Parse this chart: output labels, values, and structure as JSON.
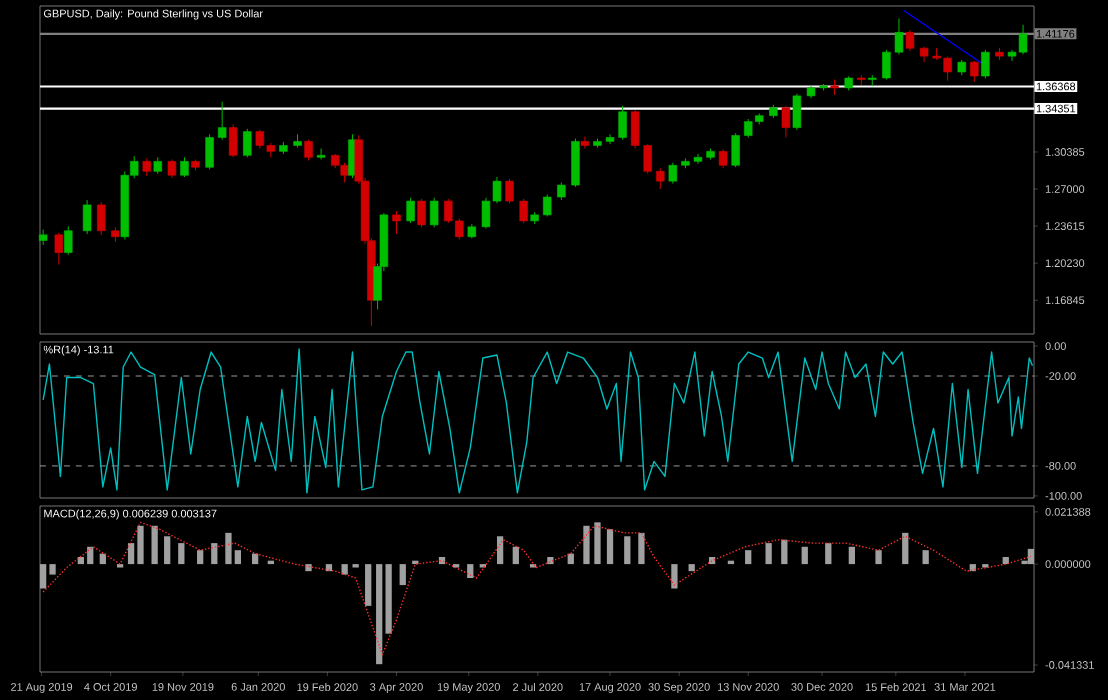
{
  "chart_data": [
    {
      "type": "candlestick",
      "title": "GBPUSD, Daily:  Pound Sterling vs US Dollar",
      "tick_labels": "y",
      "x": [
        "2019-08-22",
        "2019-09-01",
        "2019-09-07",
        "2019-09-19",
        "2019-09-28",
        "2019-10-07",
        "2019-10-13",
        "2019-10-19",
        "2019-10-27",
        "2019-11-03",
        "2019-11-12",
        "2019-11-20",
        "2019-11-27",
        "2019-12-06",
        "2019-12-14",
        "2019-12-21",
        "2019-12-30",
        "2020-01-07",
        "2020-01-14",
        "2020-01-22",
        "2020-01-31",
        "2020-02-07",
        "2020-02-15",
        "2020-02-24",
        "2020-03-01",
        "2020-03-06",
        "2020-03-10",
        "2020-03-14",
        "2020-03-18",
        "2020-03-22",
        "2020-03-26",
        "2020-04-03",
        "2020-04-12",
        "2020-04-19",
        "2020-04-27",
        "2020-05-06",
        "2020-05-13",
        "2020-05-21",
        "2020-05-30",
        "2020-06-06",
        "2020-06-14",
        "2020-06-23",
        "2020-06-30",
        "2020-07-08",
        "2020-07-17",
        "2020-07-26",
        "2020-08-01",
        "2020-08-09",
        "2020-08-17",
        "2020-08-25",
        "2020-09-02",
        "2020-09-10",
        "2020-09-18",
        "2020-09-26",
        "2020-10-04",
        "2020-10-12",
        "2020-10-20",
        "2020-10-28",
        "2020-11-05",
        "2020-11-13",
        "2020-11-20",
        "2020-11-29",
        "2020-12-07",
        "2020-12-14",
        "2020-12-23",
        "2020-12-31",
        "2021-01-07",
        "2021-01-16",
        "2021-01-24",
        "2021-01-31",
        "2021-02-09",
        "2021-02-17",
        "2021-02-24",
        "2021-03-05",
        "2021-03-13",
        "2021-03-20",
        "2021-03-29",
        "2021-04-06",
        "2021-04-13",
        "2021-04-22",
        "2021-04-30",
        "2021-05-07"
      ],
      "ohlc": [
        [
          1.223,
          1.233,
          1.219,
          1.2282
        ],
        [
          1.2282,
          1.23,
          1.201,
          1.212
        ],
        [
          1.212,
          1.236,
          1.21,
          1.2319
        ],
        [
          1.2319,
          1.26,
          1.229,
          1.2555
        ],
        [
          1.2555,
          1.258,
          1.228,
          1.2319
        ],
        [
          1.2319,
          1.235,
          1.222,
          1.2264
        ],
        [
          1.2264,
          1.286,
          1.224,
          1.2826
        ],
        [
          1.2826,
          1.3,
          1.28,
          1.2953
        ],
        [
          1.2953,
          1.298,
          1.282,
          1.2862
        ],
        [
          1.2862,
          1.299,
          1.284,
          1.2953
        ],
        [
          1.2953,
          1.297,
          1.28,
          1.2826
        ],
        [
          1.2826,
          1.299,
          1.281,
          1.2953
        ],
        [
          1.2953,
          1.297,
          1.287,
          1.2899
        ],
        [
          1.2899,
          1.32,
          1.288,
          1.3171
        ],
        [
          1.3171,
          1.3497,
          1.315,
          1.3261
        ],
        [
          1.3261,
          1.329,
          1.299,
          1.3008
        ],
        [
          1.3008,
          1.325,
          1.299,
          1.3225
        ],
        [
          1.3225,
          1.324,
          1.307,
          1.3098
        ],
        [
          1.3098,
          1.312,
          1.299,
          1.3044
        ],
        [
          1.3044,
          1.313,
          1.302,
          1.3098
        ],
        [
          1.3098,
          1.32,
          1.308,
          1.3135
        ],
        [
          1.3135,
          1.315,
          1.296,
          1.299
        ],
        [
          1.299,
          1.307,
          1.297,
          1.3008
        ],
        [
          1.3008,
          1.302,
          1.289,
          1.2917
        ],
        [
          1.2917,
          1.294,
          1.276,
          1.2826
        ],
        [
          1.2826,
          1.32,
          1.28,
          1.315
        ],
        [
          1.315,
          1.319,
          1.275,
          1.2772
        ],
        [
          1.2772,
          1.28,
          1.22,
          1.2228
        ],
        [
          1.2228,
          1.225,
          1.1449,
          1.1684
        ],
        [
          1.1684,
          1.202,
          1.16,
          1.1992
        ],
        [
          1.1992,
          1.248,
          1.195,
          1.2464
        ],
        [
          1.2464,
          1.25,
          1.229,
          1.2409
        ],
        [
          1.2409,
          1.262,
          1.239,
          1.259
        ],
        [
          1.259,
          1.261,
          1.235,
          1.2373
        ],
        [
          1.2373,
          1.262,
          1.235,
          1.259
        ],
        [
          1.259,
          1.261,
          1.239,
          1.2409
        ],
        [
          1.2409,
          1.243,
          1.224,
          1.2264
        ],
        [
          1.2264,
          1.238,
          1.225,
          1.2355
        ],
        [
          1.2355,
          1.262,
          1.234,
          1.259
        ],
        [
          1.259,
          1.281,
          1.257,
          1.2772
        ],
        [
          1.2772,
          1.279,
          1.257,
          1.259
        ],
        [
          1.259,
          1.261,
          1.239,
          1.2409
        ],
        [
          1.2409,
          1.249,
          1.238,
          1.2464
        ],
        [
          1.2464,
          1.265,
          1.245,
          1.2627
        ],
        [
          1.2627,
          1.276,
          1.26,
          1.2736
        ],
        [
          1.2736,
          1.316,
          1.272,
          1.3135
        ],
        [
          1.3135,
          1.318,
          1.307,
          1.3098
        ],
        [
          1.3098,
          1.316,
          1.308,
          1.3135
        ],
        [
          1.3135,
          1.32,
          1.311,
          1.3171
        ],
        [
          1.3171,
          1.3461,
          1.315,
          1.3406
        ],
        [
          1.3406,
          1.342,
          1.307,
          1.3098
        ],
        [
          1.3098,
          1.311,
          1.284,
          1.2862
        ],
        [
          1.2862,
          1.289,
          1.27,
          1.2772
        ],
        [
          1.2772,
          1.294,
          1.275,
          1.2917
        ],
        [
          1.2917,
          1.298,
          1.289,
          1.2953
        ],
        [
          1.2953,
          1.302,
          1.293,
          1.299
        ],
        [
          1.299,
          1.307,
          1.297,
          1.3044
        ],
        [
          1.3044,
          1.306,
          1.289,
          1.2917
        ],
        [
          1.2917,
          1.321,
          1.29,
          1.3189
        ],
        [
          1.3189,
          1.334,
          1.317,
          1.3316
        ],
        [
          1.3316,
          1.339,
          1.329,
          1.337
        ],
        [
          1.337,
          1.347,
          1.335,
          1.3443
        ],
        [
          1.3443,
          1.346,
          1.317,
          1.3261
        ],
        [
          1.3261,
          1.357,
          1.324,
          1.3551
        ],
        [
          1.3551,
          1.364,
          1.353,
          1.3624
        ],
        [
          1.3624,
          1.366,
          1.36,
          1.3642
        ],
        [
          1.3642,
          1.37,
          1.356,
          1.3624
        ],
        [
          1.3624,
          1.373,
          1.36,
          1.3714
        ],
        [
          1.3714,
          1.374,
          1.365,
          1.37
        ],
        [
          1.37,
          1.374,
          1.364,
          1.3714
        ],
        [
          1.3714,
          1.397,
          1.37,
          1.395
        ],
        [
          1.395,
          1.4258,
          1.393,
          1.4131
        ],
        [
          1.4131,
          1.415,
          1.396,
          1.3986
        ],
        [
          1.3986,
          1.4,
          1.386,
          1.3914
        ],
        [
          1.3914,
          1.399,
          1.388,
          1.3896
        ],
        [
          1.3896,
          1.391,
          1.369,
          1.3769
        ],
        [
          1.3769,
          1.388,
          1.374,
          1.3859
        ],
        [
          1.3859,
          1.387,
          1.368,
          1.3732
        ],
        [
          1.3732,
          1.397,
          1.371,
          1.395
        ],
        [
          1.395,
          1.399,
          1.388,
          1.3914
        ],
        [
          1.3914,
          1.397,
          1.387,
          1.395
        ],
        [
          1.395,
          1.42,
          1.393,
          1.4118
        ]
      ],
      "series": [
        {
          "type": "line",
          "color": "#0000ff",
          "x": [
            "2021-02-20",
            "2021-04-11"
          ],
          "values": [
            1.4331,
            1.3847
          ]
        }
      ],
      "xlim": [
        "2019-08-20",
        "2021-05-14"
      ],
      "ylim": [
        1.1376,
        1.4372
      ],
      "yticks": [
        {
          "value": 1.30385,
          "label": "1.30385"
        },
        {
          "value": 1.27,
          "label": "1.27000"
        },
        {
          "value": 1.23615,
          "label": "1.23615"
        },
        {
          "value": 1.2023,
          "label": "1.20230"
        },
        {
          "value": 1.16845,
          "label": "1.16845"
        }
      ],
      "ref_lines": [
        {
          "axis": "y",
          "value": 1.41176,
          "label": "1.41176",
          "color": "#808080"
        },
        {
          "axis": "y",
          "value": 1.36368,
          "label": "1.36368",
          "color": "#ffffff"
        },
        {
          "axis": "y",
          "value": 1.34351,
          "label": "1.34351",
          "color": "#ffffff"
        }
      ]
    },
    {
      "type": "line",
      "title": "%R(14) -13.11",
      "tick_labels": "y",
      "series": [
        {
          "color": "#00c0c0",
          "x": [
            "2019-08-22",
            "2019-08-26",
            "2019-09-02",
            "2019-09-06",
            "2019-09-15",
            "2019-09-23",
            "2019-09-29",
            "2019-10-04",
            "2019-10-08",
            "2019-10-12",
            "2019-10-17",
            "2019-10-23",
            "2019-11-01",
            "2019-11-09",
            "2019-11-18",
            "2019-11-24",
            "2019-11-30",
            "2019-12-07",
            "2019-12-13",
            "2019-12-24",
            "2019-12-30",
            "2020-01-04",
            "2020-01-08",
            "2020-01-17",
            "2020-01-21",
            "2020-01-27",
            "2020-02-01",
            "2020-02-06",
            "2020-02-11",
            "2020-02-18",
            "2020-02-22",
            "2020-02-26",
            "2020-03-06",
            "2020-03-12",
            "2020-03-19",
            "2020-03-25",
            "2020-04-03",
            "2020-04-09",
            "2020-04-13",
            "2020-04-18",
            "2020-04-24",
            "2020-04-30",
            "2020-05-07",
            "2020-05-13",
            "2020-05-20",
            "2020-05-28",
            "2020-06-06",
            "2020-06-12",
            "2020-06-19",
            "2020-06-25",
            "2020-06-29",
            "2020-07-08",
            "2020-07-14",
            "2020-07-21",
            "2020-07-31",
            "2020-08-09",
            "2020-08-15",
            "2020-08-21",
            "2020-08-24",
            "2020-08-30",
            "2020-09-04",
            "2020-09-08",
            "2020-09-14",
            "2020-09-21",
            "2020-09-27",
            "2020-10-03",
            "2020-10-10",
            "2020-10-16",
            "2020-10-21",
            "2020-10-27",
            "2020-10-31",
            "2020-11-07",
            "2020-11-13",
            "2020-11-22",
            "2020-11-26",
            "2020-12-02",
            "2020-12-11",
            "2020-12-19",
            "2020-12-26",
            "2020-12-30",
            "2021-01-03",
            "2021-01-10",
            "2021-01-14",
            "2021-01-20",
            "2021-01-27",
            "2021-02-02",
            "2021-02-07",
            "2021-02-13",
            "2021-02-19",
            "2021-02-26",
            "2021-03-04",
            "2021-03-11",
            "2021-03-17",
            "2021-03-23",
            "2021-03-29",
            "2021-04-02",
            "2021-04-08",
            "2021-04-17",
            "2021-04-21",
            "2021-04-28",
            "2021-04-30",
            "2021-05-04",
            "2021-05-06",
            "2021-05-11",
            "2021-05-13"
          ],
          "values": [
            -36,
            -12,
            -87,
            -21,
            -21,
            -25,
            -94,
            -68,
            -96,
            -14,
            -4,
            -14,
            -19,
            -96,
            -21,
            -72,
            -29,
            -4,
            -14,
            -94,
            -47,
            -77,
            -51,
            -83,
            -29,
            -77,
            -2,
            -98,
            -47,
            -81,
            -29,
            -94,
            -4,
            -96,
            -94,
            -47,
            -17,
            -4,
            -4,
            -38,
            -72,
            -17,
            -55,
            -98,
            -68,
            -8,
            -6,
            -38,
            -98,
            -64,
            -21,
            -4,
            -25,
            -4,
            -8,
            -21,
            -42,
            -25,
            -77,
            -4,
            -21,
            -96,
            -77,
            -87,
            -25,
            -38,
            -4,
            -60,
            -17,
            -47,
            -77,
            -12,
            -4,
            -8,
            -21,
            -4,
            -77,
            -8,
            -29,
            -4,
            -25,
            -42,
            -4,
            -21,
            -12,
            -47,
            -4,
            -12,
            -4,
            -51,
            -85,
            -55,
            -94,
            -25,
            -81,
            -29,
            -85,
            -4,
            -38,
            -21,
            -60,
            -34,
            -55,
            -8,
            -13.11
          ]
        }
      ],
      "xlim": [
        "2019-08-20",
        "2021-05-14"
      ],
      "ylim": [
        -101.4,
        2.7
      ],
      "yticks": [
        {
          "value": 0,
          "label": "0.00"
        },
        {
          "value": -20,
          "label": "-20.00"
        },
        {
          "value": -80,
          "label": "-80.00"
        },
        {
          "value": -100,
          "label": "-100.00"
        }
      ],
      "ref_lines": [
        {
          "axis": "y",
          "value": -20,
          "color": "#c0c0c0",
          "line_style": "dashed"
        },
        {
          "axis": "y",
          "value": -80,
          "color": "#c0c0c0",
          "line_style": "dashed"
        }
      ]
    },
    {
      "type": "bar",
      "title": "MACD(12,26,9) 0.006239 0.003137",
      "series": [
        {
          "type": "bar",
          "color": "#a0a0a0",
          "x": [
            "2019-08-22",
            "2019-08-28",
            "2019-09-06",
            "2019-09-15",
            "2019-09-21",
            "2019-09-29",
            "2019-10-10",
            "2019-10-17",
            "2019-10-23",
            "2019-11-01",
            "2019-11-09",
            "2019-11-18",
            "2019-11-30",
            "2019-12-09",
            "2019-12-18",
            "2019-12-24",
            "2020-01-04",
            "2020-01-14",
            "2020-01-29",
            "2020-02-07",
            "2020-02-20",
            "2020-03-01",
            "2020-03-08",
            "2020-03-16",
            "2020-03-23",
            "2020-03-29",
            "2020-04-07",
            "2020-04-15",
            "2020-04-24",
            "2020-05-02",
            "2020-05-11",
            "2020-05-20",
            "2020-05-28",
            "2020-06-08",
            "2020-06-18",
            "2020-06-29",
            "2020-07-10",
            "2020-07-23",
            "2020-08-02",
            "2020-08-09",
            "2020-08-17",
            "2020-08-28",
            "2020-09-06",
            "2020-09-14",
            "2020-09-27",
            "2020-10-08",
            "2020-10-21",
            "2020-11-02",
            "2020-11-13",
            "2020-11-26",
            "2020-12-06",
            "2020-12-19",
            "2021-01-03",
            "2021-01-18",
            "2021-02-04",
            "2021-02-21",
            "2021-03-06",
            "2021-03-23",
            "2021-04-05",
            "2021-04-13",
            "2021-04-26",
            "2021-05-08",
            "2021-05-12"
          ],
          "values": [
            -0.01,
            -0.0043,
            0,
            0.0029,
            0.0071,
            0.0043,
            -0.0014,
            0.0086,
            0.0157,
            0.0157,
            0.0114,
            0.0086,
            0.0057,
            0.0086,
            0.0128,
            0.0057,
            0.0043,
            0.0014,
            0,
            -0.0029,
            -0.0029,
            -0.0043,
            -0.0014,
            -0.0171,
            -0.041,
            -0.0285,
            -0.0086,
            0.0014,
            0,
            0.0029,
            -0.0014,
            -0.0057,
            -0.0014,
            0.0114,
            0.0071,
            -0.0014,
            0.0029,
            0.0043,
            0.0157,
            0.0171,
            0.0143,
            0.0114,
            0.0128,
            0,
            -0.01,
            -0.0029,
            0.0029,
            0.0014,
            0.0057,
            0.0086,
            0.01,
            0.0071,
            0.0086,
            0.0071,
            0.0057,
            0.0128,
            0.0057,
            0,
            -0.0029,
            -0.0014,
            0.0029,
            0.0014,
            0.006239
          ]
        },
        {
          "type": "line",
          "color": "#ff3030",
          "line_style": "dotted",
          "x": [
            "2019-08-22",
            "2019-09-06",
            "2019-09-23",
            "2019-10-10",
            "2019-10-23",
            "2019-11-04",
            "2019-11-30",
            "2019-12-22",
            "2020-01-04",
            "2020-01-29",
            "2020-02-24",
            "2020-03-08",
            "2020-03-25",
            "2020-04-03",
            "2020-04-15",
            "2020-05-02",
            "2020-05-24",
            "2020-06-10",
            "2020-06-23",
            "2020-07-01",
            "2020-07-23",
            "2020-08-07",
            "2020-08-26",
            "2020-09-06",
            "2020-09-14",
            "2020-09-27",
            "2020-10-21",
            "2020-11-11",
            "2020-12-02",
            "2020-12-24",
            "2021-01-14",
            "2021-02-04",
            "2021-02-21",
            "2021-03-11",
            "2021-04-01",
            "2021-04-26",
            "2021-05-12"
          ],
          "values": [
            -0.0114,
            -0.0014,
            0.0071,
            0,
            0.0171,
            0.0143,
            0.0057,
            0.0086,
            0.0043,
            0,
            -0.0029,
            -0.0057,
            -0.0371,
            -0.0228,
            0,
            0.0014,
            -0.0057,
            0.01,
            0.0057,
            -0.0014,
            0.0043,
            0.0157,
            0.0128,
            0.0128,
            0.0029,
            -0.0086,
            0.0014,
            0.0071,
            0.01,
            0.0086,
            0.0086,
            0.0057,
            0.0114,
            0.0057,
            -0.0029,
            0,
            0.003137
          ]
        }
      ],
      "xlim": [
        "2019-08-20",
        "2021-05-14"
      ],
      "ylim": [
        -0.0442,
        0.0238
      ],
      "xticks": [
        {
          "value": "2019-08-21",
          "label": "21 Aug 2019"
        },
        {
          "value": "2019-10-04",
          "label": "4 Oct 2019"
        },
        {
          "value": "2019-11-19",
          "label": "19 Nov 2019"
        },
        {
          "value": "2020-01-06",
          "label": "6 Jan 2020"
        },
        {
          "value": "2020-02-19",
          "label": "19 Feb 2020"
        },
        {
          "value": "2020-04-03",
          "label": "3 Apr 2020"
        },
        {
          "value": "2020-05-19",
          "label": "19 May 2020"
        },
        {
          "value": "2020-07-02",
          "label": "2 Jul 2020"
        },
        {
          "value": "2020-08-17",
          "label": "17 Aug 2020"
        },
        {
          "value": "2020-09-30",
          "label": "30 Sep 2020"
        },
        {
          "value": "2020-11-13",
          "label": "13 Nov 2020"
        },
        {
          "value": "2020-12-30",
          "label": "30 Dec 2020"
        },
        {
          "value": "2021-02-15",
          "label": "15 Feb 2021"
        },
        {
          "value": "2021-03-31",
          "label": "31 Mar 2021"
        }
      ],
      "yticks": [
        0.021388,
        {
          "value": 0,
          "label": "0.000000"
        },
        {
          "value": -0.041331,
          "label": "-0.041331"
        }
      ]
    }
  ]
}
